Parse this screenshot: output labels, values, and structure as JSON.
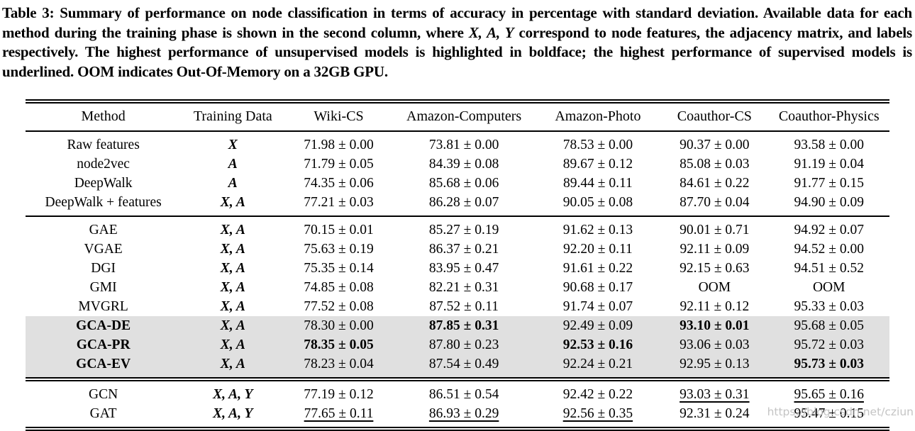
{
  "caption": {
    "part1": "Table 3: Summary of performance on node classification in terms of accuracy in percentage with standard deviation. Available data for each method during the training phase is shown in the second column, where ",
    "variables": "X, A, Y",
    "part2": " correspond to node features, the adjacency matrix, and labels respectively. The highest performance of unsupervised models is highlighted in boldface; the highest performance of supervised models is underlined. OOM indicates Out-Of-Memory on a 32GB GPU."
  },
  "table": {
    "columns": [
      "Method",
      "Training Data",
      "Wiki-CS",
      "Amazon-Computers",
      "Amazon-Photo",
      "Coauthor-CS",
      "Coauthor-Physics"
    ],
    "rows": [
      {
        "method": "Raw features",
        "training_data": "X",
        "group_start": true,
        "cells": [
          {
            "v": "71.98 ± 0.00"
          },
          {
            "v": "73.81 ± 0.00"
          },
          {
            "v": "78.53 ± 0.00"
          },
          {
            "v": "90.37 ± 0.00"
          },
          {
            "v": "93.58 ± 0.00"
          }
        ]
      },
      {
        "method": "node2vec",
        "training_data": "A",
        "cells": [
          {
            "v": "71.79 ± 0.05"
          },
          {
            "v": "84.39 ± 0.08"
          },
          {
            "v": "89.67 ± 0.12"
          },
          {
            "v": "85.08 ± 0.03"
          },
          {
            "v": "91.19 ± 0.04"
          }
        ]
      },
      {
        "method": "DeepWalk",
        "training_data": "A",
        "cells": [
          {
            "v": "74.35 ± 0.06"
          },
          {
            "v": "85.68 ± 0.06"
          },
          {
            "v": "89.44 ± 0.11"
          },
          {
            "v": "84.61 ± 0.22"
          },
          {
            "v": "91.77 ± 0.15"
          }
        ]
      },
      {
        "method": "DeepWalk + features",
        "training_data": "X, A",
        "group_end": true,
        "cells": [
          {
            "v": "77.21 ± 0.03"
          },
          {
            "v": "86.28 ± 0.07"
          },
          {
            "v": "90.05 ± 0.08"
          },
          {
            "v": "87.70 ± 0.04"
          },
          {
            "v": "94.90 ± 0.09"
          }
        ]
      },
      {
        "method": "GAE",
        "training_data": "X, A",
        "rule": "single",
        "cells": [
          {
            "v": "70.15 ± 0.01"
          },
          {
            "v": "85.27 ± 0.19"
          },
          {
            "v": "91.62 ± 0.13"
          },
          {
            "v": "90.01 ± 0.71"
          },
          {
            "v": "94.92 ± 0.07"
          }
        ]
      },
      {
        "method": "VGAE",
        "training_data": "X, A",
        "cells": [
          {
            "v": "75.63 ± 0.19"
          },
          {
            "v": "86.37 ± 0.21"
          },
          {
            "v": "92.20 ± 0.11"
          },
          {
            "v": "92.11 ± 0.09"
          },
          {
            "v": "94.52 ± 0.00"
          }
        ]
      },
      {
        "method": "DGI",
        "training_data": "X, A",
        "cells": [
          {
            "v": "75.35 ± 0.14"
          },
          {
            "v": "83.95 ± 0.47"
          },
          {
            "v": "91.61 ± 0.22"
          },
          {
            "v": "92.15 ± 0.63"
          },
          {
            "v": "94.51 ± 0.52"
          }
        ]
      },
      {
        "method": "GMI",
        "training_data": "X, A",
        "cells": [
          {
            "v": "74.85 ± 0.08"
          },
          {
            "v": "82.21 ± 0.31"
          },
          {
            "v": "90.68 ± 0.17"
          },
          {
            "v": "OOM"
          },
          {
            "v": "OOM"
          }
        ]
      },
      {
        "method": "MVGRL",
        "training_data": "X, A",
        "cells": [
          {
            "v": "77.52 ± 0.08"
          },
          {
            "v": "87.52 ± 0.11"
          },
          {
            "v": "91.74 ± 0.07"
          },
          {
            "v": "92.11 ± 0.12"
          },
          {
            "v": "95.33 ± 0.03"
          }
        ]
      },
      {
        "method": "GCA-DE",
        "method_bold": true,
        "highlight": true,
        "training_data": "X, A",
        "cells": [
          {
            "v": "78.30 ± 0.00"
          },
          {
            "v": "87.85 ± 0.31",
            "b": true
          },
          {
            "v": "92.49 ± 0.09"
          },
          {
            "v": "93.10 ± 0.01",
            "b": true
          },
          {
            "v": "95.68 ± 0.05"
          }
        ]
      },
      {
        "method": "GCA-PR",
        "method_bold": true,
        "highlight": true,
        "training_data": "X, A",
        "cells": [
          {
            "v": "78.35 ± 0.05",
            "b": true
          },
          {
            "v": "87.80 ± 0.23"
          },
          {
            "v": "92.53 ± 0.16",
            "b": true
          },
          {
            "v": "93.06 ± 0.03"
          },
          {
            "v": "95.72 ± 0.03"
          }
        ]
      },
      {
        "method": "GCA-EV",
        "method_bold": true,
        "highlight": true,
        "training_data": "X, A",
        "group_end": true,
        "cells": [
          {
            "v": "78.23 ± 0.04"
          },
          {
            "v": "87.54 ± 0.49"
          },
          {
            "v": "92.24 ± 0.21"
          },
          {
            "v": "92.95 ± 0.13"
          },
          {
            "v": "95.73 ± 0.03",
            "b": true
          }
        ]
      },
      {
        "method": "GCN",
        "training_data": "X, A, Y",
        "rule": "double",
        "cells": [
          {
            "v": "77.19 ± 0.12"
          },
          {
            "v": "86.51 ± 0.54"
          },
          {
            "v": "92.42 ± 0.22"
          },
          {
            "v": "93.03 ± 0.31",
            "u": true
          },
          {
            "v": "95.65 ± 0.16",
            "u": true
          }
        ]
      },
      {
        "method": "GAT",
        "training_data": "X, A, Y",
        "group_end": true,
        "cells": [
          {
            "v": "77.65 ± 0.11",
            "u": true
          },
          {
            "v": "86.93 ± 0.29",
            "u": true
          },
          {
            "v": "92.56 ± 0.35",
            "u": true
          },
          {
            "v": "92.31 ± 0.24"
          },
          {
            "v": "95.47 ± 0.15"
          }
        ]
      }
    ]
  },
  "watermark": "https://blog.csdn.net/cziun",
  "colors": {
    "row_highlight": "#e0e0e0",
    "rule": "#000000",
    "watermark": "#c4c4c4"
  }
}
